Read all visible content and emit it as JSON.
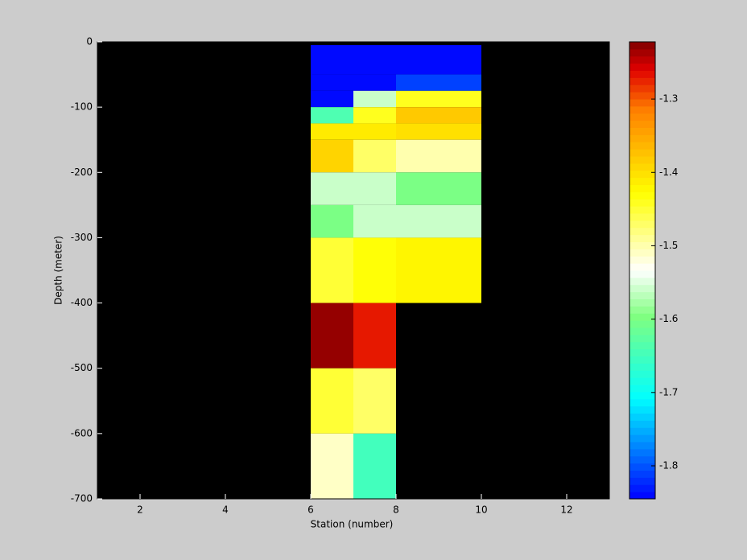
{
  "chart_data": {
    "type": "heatmap",
    "xlabel": "Station (number)",
    "ylabel": "Depth (meter)",
    "xlim": [
      1,
      13
    ],
    "ylim": [
      -700,
      0
    ],
    "xticks": [
      2,
      4,
      6,
      8,
      10,
      12
    ],
    "yticks": [
      0,
      -100,
      -200,
      -300,
      -400,
      -500,
      -600,
      -700
    ],
    "background": "#000000",
    "x_edges": [
      6,
      7,
      8,
      9,
      10
    ],
    "y_edges": [
      -5,
      -50,
      -75,
      -100,
      -125,
      -150,
      -200,
      -250,
      -300,
      -400,
      -500,
      -600,
      -700
    ],
    "values": [
      [
        -1.84,
        -1.84,
        -1.84,
        -1.84
      ],
      [
        -1.84,
        -1.84,
        -1.81,
        -1.81
      ],
      [
        -1.84,
        -1.56,
        -1.44,
        -1.44
      ],
      [
        -1.64,
        -1.44,
        -1.38,
        -1.38
      ],
      [
        -1.41,
        -1.41,
        -1.4,
        -1.4
      ],
      [
        -1.39,
        -1.47,
        -1.5,
        -1.5
      ],
      [
        -1.56,
        -1.56,
        -1.6,
        -1.6
      ],
      [
        -1.6,
        -1.56,
        -1.56,
        -1.56
      ],
      [
        -1.45,
        -1.43,
        -1.42,
        -1.42
      ],
      [
        -1.23,
        -1.27,
        null,
        null
      ],
      [
        -1.45,
        -1.47,
        null,
        null
      ],
      [
        -1.51,
        -1.65,
        null,
        null
      ]
    ],
    "clim": [
      -1.845,
      -1.222
    ],
    "cticks": [
      -1.8,
      -1.7,
      -1.6,
      -1.5,
      -1.4,
      -1.3
    ],
    "colormap": [
      {
        "offset": 0,
        "color": "#0000ff"
      },
      {
        "offset": 0.22,
        "color": "#00ffff"
      },
      {
        "offset": 0.4,
        "color": "#80ff80"
      },
      {
        "offset": 0.5,
        "color": "#ffffff"
      },
      {
        "offset": 0.67,
        "color": "#ffff00"
      },
      {
        "offset": 0.85,
        "color": "#ff8000"
      },
      {
        "offset": 0.94,
        "color": "#e00000"
      },
      {
        "offset": 1,
        "color": "#800000"
      }
    ]
  }
}
